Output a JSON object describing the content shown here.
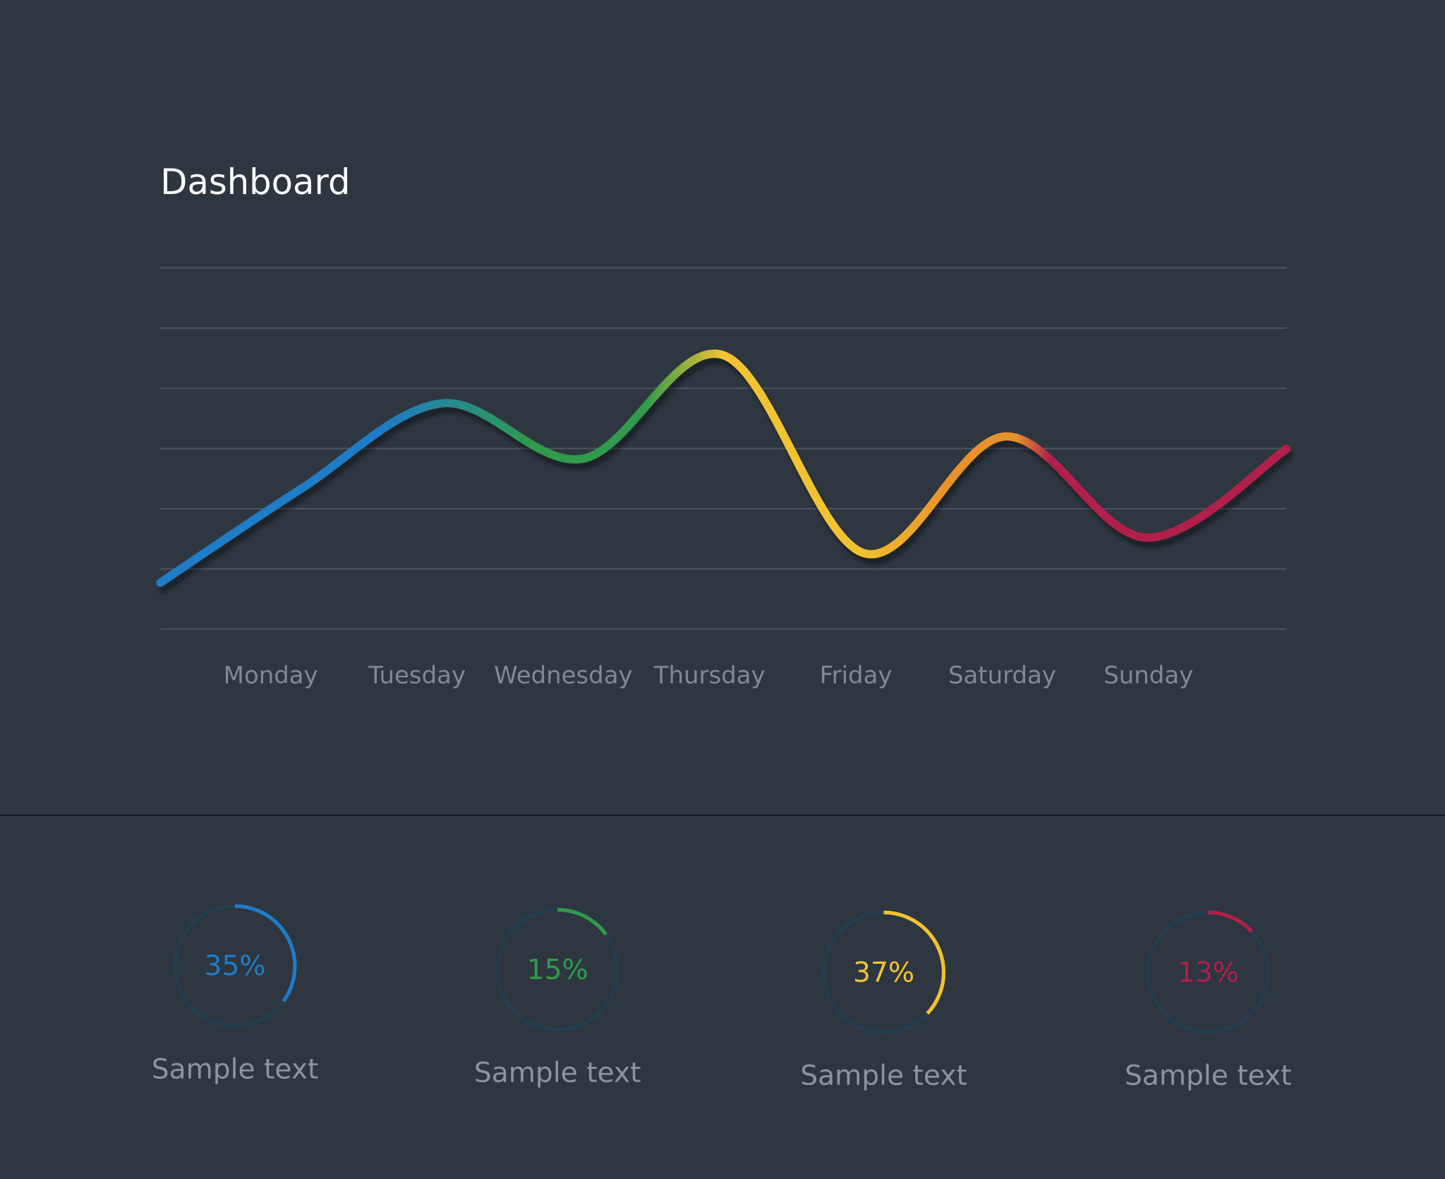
{
  "chart_data": [
    {
      "type": "line",
      "title": "Dashboard",
      "categories": [
        null,
        "Monday",
        "Tuesday",
        "Wednesday",
        "Thursday",
        "Friday",
        "Saturday",
        "Sunday",
        null
      ],
      "values": [
        0.77,
        2.33,
        3.75,
        2.83,
        4.55,
        1.26,
        3.2,
        1.52,
        2.99
      ],
      "colors": [
        "#1f7cc6",
        "#2f9b4b",
        "#f1c232",
        "#e7922b",
        "#b1204b"
      ],
      "ylim": [
        0,
        6
      ],
      "yticks": [
        0,
        1,
        2,
        3,
        4,
        5,
        6
      ],
      "grid": true
    },
    {
      "type": "gauge",
      "values": [
        35,
        15,
        37,
        13
      ],
      "value_labels": [
        "35%",
        "15%",
        "37%",
        "13%"
      ],
      "labels": [
        "Sample text",
        "Sample text",
        "Sample text",
        "Sample text"
      ],
      "colors": [
        "#1f7cc6",
        "#2f9b4b",
        "#f1c232",
        "#b1204b"
      ],
      "track_color": "#243f4f"
    }
  ]
}
